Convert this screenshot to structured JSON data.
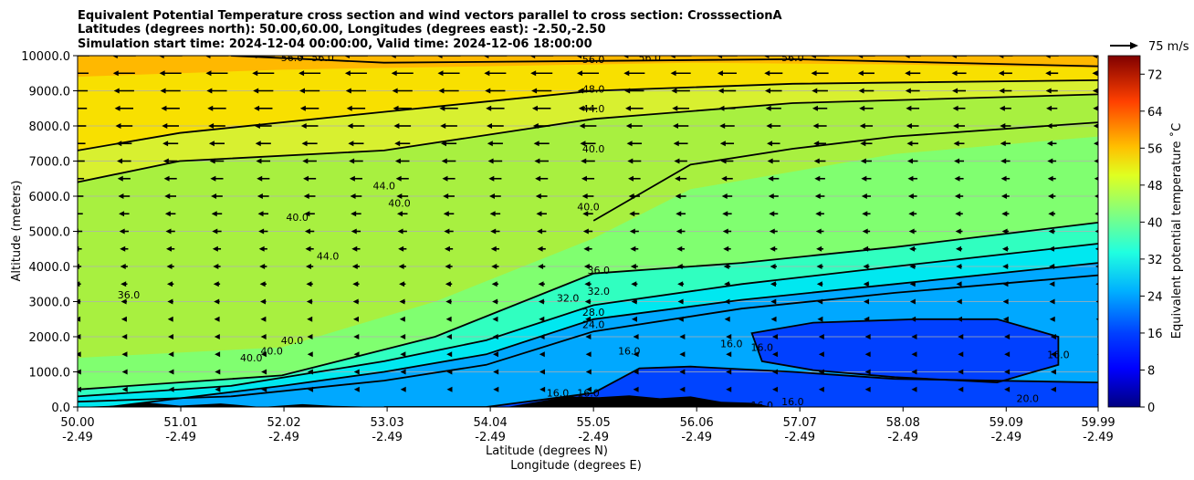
{
  "chart_data": {
    "type": "heatmap",
    "title_lines": [
      "Equivalent Potential Temperature cross section and wind vectors parallel to cross section: CrosssectionA",
      "Latitudes (degrees north): 50.00,60.00, Longitudes (degrees east): -2.50,-2.50",
      "Simulation start time: 2024-12-04 00:00:00, Valid time: 2024-12-06 18:00:00"
    ],
    "xlabel_lines": [
      "Latitude (degrees N)",
      "Longitude (degrees E)"
    ],
    "ylabel": "Altitude (meters)",
    "x_ticks": [
      {
        "lat": "50.00",
        "lon": "-2.49"
      },
      {
        "lat": "51.01",
        "lon": "-2.49"
      },
      {
        "lat": "52.02",
        "lon": "-2.49"
      },
      {
        "lat": "53.03",
        "lon": "-2.49"
      },
      {
        "lat": "54.04",
        "lon": "-2.49"
      },
      {
        "lat": "55.05",
        "lon": "-2.49"
      },
      {
        "lat": "56.06",
        "lon": "-2.49"
      },
      {
        "lat": "57.07",
        "lon": "-2.49"
      },
      {
        "lat": "58.08",
        "lon": "-2.49"
      },
      {
        "lat": "59.09",
        "lon": "-2.49"
      },
      {
        "lat": "59.99",
        "lon": "-2.49"
      }
    ],
    "xlim": [
      50.0,
      59.99
    ],
    "ylim": [
      0,
      10000
    ],
    "y_ticks": [
      0,
      1000,
      2000,
      3000,
      4000,
      5000,
      6000,
      7000,
      8000,
      9000,
      10000
    ],
    "y_tick_labels": [
      "0.0",
      "1000.0",
      "2000.0",
      "3000.0",
      "4000.0",
      "5000.0",
      "6000.0",
      "7000.0",
      "8000.0",
      "9000.0",
      "10000.0"
    ],
    "colorbar": {
      "label": "Equivalent potential temperature ˚C",
      "min": 0,
      "max": 76,
      "ticks": [
        0,
        8,
        16,
        24,
        32,
        40,
        48,
        56,
        64,
        72
      ],
      "tick_labels": [
        "0",
        "8",
        "16",
        "24",
        "32",
        "40",
        "48",
        "56",
        "64",
        "72"
      ]
    },
    "quiver_key": {
      "label": "75 m/s"
    },
    "contour_labels": [
      {
        "text": "56.0",
        "lat": 55.05,
        "alt": 9900
      },
      {
        "text": "56.0",
        "lat": 52.1,
        "alt": 9950
      },
      {
        "text": "56.0",
        "lat": 52.4,
        "alt": 9950
      },
      {
        "text": "56.0",
        "lat": 55.6,
        "alt": 9950
      },
      {
        "text": "56.0",
        "lat": 57.0,
        "alt": 9950
      },
      {
        "text": "48.0",
        "lat": 55.05,
        "alt": 9050
      },
      {
        "text": "44.0",
        "lat": 55.05,
        "alt": 8500
      },
      {
        "text": "40.0",
        "lat": 55.05,
        "alt": 7350
      },
      {
        "text": "44.0",
        "lat": 53.0,
        "alt": 6300
      },
      {
        "text": "40.0",
        "lat": 53.15,
        "alt": 5800
      },
      {
        "text": "40.0",
        "lat": 52.15,
        "alt": 5400
      },
      {
        "text": "44.0",
        "lat": 52.45,
        "alt": 4300
      },
      {
        "text": "40.0",
        "lat": 55.0,
        "alt": 5700
      },
      {
        "text": "36.0",
        "lat": 55.1,
        "alt": 3900
      },
      {
        "text": "32.0",
        "lat": 55.1,
        "alt": 3300
      },
      {
        "text": "32.0",
        "lat": 54.8,
        "alt": 3100
      },
      {
        "text": "28.0",
        "lat": 55.05,
        "alt": 2700
      },
      {
        "text": "24.0",
        "lat": 55.05,
        "alt": 2350
      },
      {
        "text": "36.0",
        "lat": 50.5,
        "alt": 3200
      },
      {
        "text": "40.0",
        "lat": 52.1,
        "alt": 1900
      },
      {
        "text": "40.0",
        "lat": 51.7,
        "alt": 1400
      },
      {
        "text": "40.0",
        "lat": 51.9,
        "alt": 1600
      },
      {
        "text": "16.0",
        "lat": 55.4,
        "alt": 1600
      },
      {
        "text": "16.0",
        "lat": 56.4,
        "alt": 1800
      },
      {
        "text": "16.0",
        "lat": 56.7,
        "alt": 1700
      },
      {
        "text": "16.0",
        "lat": 59.6,
        "alt": 1500
      },
      {
        "text": "16.0",
        "lat": 54.7,
        "alt": 400
      },
      {
        "text": "16.0",
        "lat": 55.0,
        "alt": 400
      },
      {
        "text": "16.0",
        "lat": 56.7,
        "alt": 50
      },
      {
        "text": "16.0",
        "lat": 57.0,
        "alt": 150
      },
      {
        "text": "20.0",
        "lat": 59.3,
        "alt": 250
      }
    ],
    "series": [
      {
        "name": "contour 24",
        "points": [
          [
            50.0,
            150
          ],
          [
            51.5,
            300
          ],
          [
            53.0,
            750
          ],
          [
            54.0,
            1200
          ],
          [
            55.05,
            2150
          ],
          [
            56.5,
            2800
          ],
          [
            58.0,
            3250
          ],
          [
            59.99,
            3750
          ]
        ]
      },
      {
        "name": "contour 28",
        "points": [
          [
            50.3,
            0
          ],
          [
            52.0,
            600
          ],
          [
            53.0,
            1000
          ],
          [
            54.0,
            1500
          ],
          [
            55.05,
            2500
          ],
          [
            56.5,
            3050
          ],
          [
            58.0,
            3500
          ],
          [
            59.99,
            4100
          ]
        ]
      },
      {
        "name": "contour 32",
        "points": [
          [
            50.0,
            300
          ],
          [
            51.5,
            600
          ],
          [
            53.0,
            1300
          ],
          [
            54.0,
            1900
          ],
          [
            55.05,
            2900
          ],
          [
            56.5,
            3500
          ],
          [
            58.0,
            4000
          ],
          [
            59.99,
            4650
          ]
        ]
      },
      {
        "name": "contour 36",
        "points": [
          [
            50.0,
            500
          ],
          [
            52.0,
            900
          ],
          [
            53.5,
            2000
          ],
          [
            55.05,
            3800
          ],
          [
            56.5,
            4100
          ],
          [
            58.0,
            4550
          ],
          [
            59.99,
            5250
          ]
        ]
      },
      {
        "name": "contour 40",
        "points": [
          [
            55.05,
            5300
          ],
          [
            56.0,
            6900
          ],
          [
            57.0,
            7350
          ],
          [
            58.0,
            7700
          ],
          [
            59.99,
            8100
          ]
        ]
      },
      {
        "name": "contour 44",
        "points": [
          [
            50.0,
            6400
          ],
          [
            51.0,
            7000
          ],
          [
            53.0,
            7300
          ],
          [
            55.05,
            8200
          ],
          [
            57.0,
            8650
          ],
          [
            59.99,
            8900
          ]
        ]
      },
      {
        "name": "contour 48",
        "points": [
          [
            50.0,
            7300
          ],
          [
            51.0,
            7800
          ],
          [
            53.0,
            8400
          ],
          [
            55.05,
            9000
          ],
          [
            57.0,
            9200
          ],
          [
            59.99,
            9300
          ]
        ]
      },
      {
        "name": "contour 56",
        "points": [
          [
            51.5,
            10000
          ],
          [
            53.0,
            9800
          ],
          [
            55.05,
            9850
          ],
          [
            57.0,
            9900
          ],
          [
            59.99,
            9700
          ]
        ]
      },
      {
        "name": "contour 16",
        "points": [
          [
            53.0,
            0
          ],
          [
            54.0,
            0
          ],
          [
            55.05,
            400
          ],
          [
            55.5,
            1100
          ],
          [
            56.0,
            1150
          ],
          [
            57.0,
            1000
          ],
          [
            58.0,
            800
          ],
          [
            59.99,
            700
          ]
        ]
      }
    ]
  }
}
